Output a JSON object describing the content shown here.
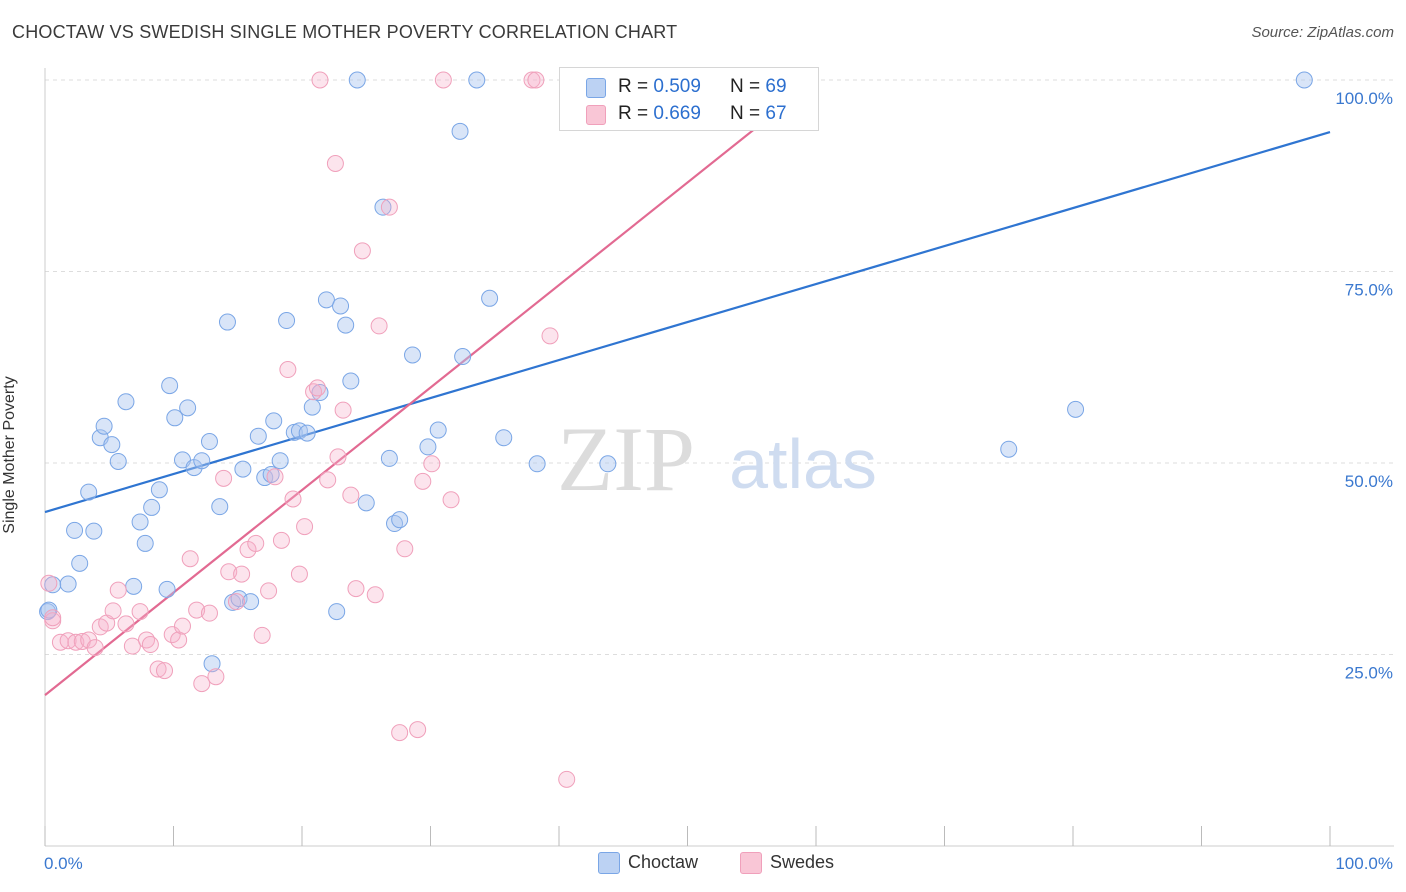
{
  "title": "CHOCTAW VS SWEDISH SINGLE MOTHER POVERTY CORRELATION CHART",
  "source": "Source: ZipAtlas.com",
  "watermark": {
    "zip": "ZIP",
    "atlas": "atlas"
  },
  "legend_top": [
    {
      "r_label": "R =",
      "r_value": "0.509",
      "n_label": "N =",
      "n_value": "69"
    },
    {
      "r_label": "R =",
      "r_value": "0.669",
      "n_label": "N =",
      "n_value": "67"
    }
  ],
  "chart_data": {
    "type": "scatter",
    "title": "CHOCTAW VS SWEDISH SINGLE MOTHER POVERTY CORRELATION CHART",
    "xlabel": "",
    "ylabel": "Single Mother Poverty",
    "xlim": [
      0,
      100
    ],
    "ylim": [
      0,
      100
    ],
    "x_tick_labels": [
      "0.0%",
      "100.0%"
    ],
    "y_tick_labels": [
      "25.0%",
      "50.0%",
      "75.0%",
      "100.0%"
    ],
    "y_ticks": [
      25,
      50,
      75,
      100
    ],
    "grid": "horizontal dashed",
    "legend_position": "bottom-center",
    "colors": {
      "choctaw": "#7aa6e6",
      "choctaw_line": "#2f75d1",
      "swedes": "#f0a0bb",
      "swedes_line": "#e26a92",
      "axis_text": "#3a78cf"
    },
    "series": [
      {
        "name": "Choctaw",
        "trend": {
          "x": [
            0,
            100
          ],
          "y": [
            43.6,
            93.2
          ]
        },
        "points": [
          [
            0.2,
            30.6
          ],
          [
            0.6,
            34.1
          ],
          [
            1.8,
            34.2
          ],
          [
            2.3,
            41.2
          ],
          [
            2.7,
            36.9
          ],
          [
            3.4,
            46.2
          ],
          [
            3.8,
            41.1
          ],
          [
            4.3,
            53.3
          ],
          [
            4.6,
            54.8
          ],
          [
            5.2,
            52.4
          ],
          [
            5.7,
            50.2
          ],
          [
            6.3,
            58.0
          ],
          [
            6.9,
            33.9
          ],
          [
            7.4,
            42.3
          ],
          [
            7.8,
            39.5
          ],
          [
            8.3,
            44.2
          ],
          [
            8.9,
            46.5
          ],
          [
            9.5,
            33.5
          ],
          [
            9.7,
            60.1
          ],
          [
            10.1,
            55.9
          ],
          [
            10.7,
            50.4
          ],
          [
            11.1,
            57.2
          ],
          [
            11.6,
            49.4
          ],
          [
            12.2,
            50.3
          ],
          [
            12.8,
            52.8
          ],
          [
            13.0,
            23.8
          ],
          [
            13.6,
            44.3
          ],
          [
            14.2,
            68.4
          ],
          [
            14.6,
            31.8
          ],
          [
            15.1,
            32.3
          ],
          [
            15.4,
            49.2
          ],
          [
            16.0,
            31.9
          ],
          [
            16.6,
            53.5
          ],
          [
            17.1,
            48.1
          ],
          [
            17.6,
            48.5
          ],
          [
            17.8,
            55.5
          ],
          [
            18.3,
            50.3
          ],
          [
            18.8,
            68.6
          ],
          [
            19.4,
            54.0
          ],
          [
            19.8,
            54.2
          ],
          [
            20.4,
            53.9
          ],
          [
            20.8,
            57.3
          ],
          [
            21.4,
            59.2
          ],
          [
            21.9,
            71.3
          ],
          [
            23.0,
            70.5
          ],
          [
            23.4,
            68.0
          ],
          [
            23.8,
            60.7
          ],
          [
            22.7,
            30.6
          ],
          [
            24.3,
            100
          ],
          [
            25.0,
            44.8
          ],
          [
            26.3,
            83.4
          ],
          [
            26.8,
            50.6
          ],
          [
            27.2,
            42.1
          ],
          [
            27.6,
            42.6
          ],
          [
            28.6,
            64.1
          ],
          [
            29.8,
            52.1
          ],
          [
            30.6,
            54.3
          ],
          [
            32.3,
            93.3
          ],
          [
            32.5,
            63.9
          ],
          [
            33.6,
            100
          ],
          [
            34.6,
            71.5
          ],
          [
            35.7,
            53.3
          ],
          [
            38.3,
            49.9
          ],
          [
            43.8,
            49.9
          ],
          [
            46.2,
            100
          ],
          [
            75.0,
            51.8
          ],
          [
            80.2,
            57.0
          ],
          [
            98.0,
            100
          ],
          [
            0.3,
            30.8
          ]
        ]
      },
      {
        "name": "Swedes",
        "trend": {
          "x": [
            0,
            60
          ],
          "y": [
            19.7,
            100
          ]
        },
        "points": [
          [
            0.3,
            34.3
          ],
          [
            0.6,
            29.4
          ],
          [
            1.2,
            26.6
          ],
          [
            1.8,
            26.8
          ],
          [
            2.4,
            26.6
          ],
          [
            2.9,
            26.7
          ],
          [
            3.4,
            26.9
          ],
          [
            3.9,
            25.9
          ],
          [
            4.3,
            28.6
          ],
          [
            4.8,
            29.1
          ],
          [
            5.3,
            30.7
          ],
          [
            5.7,
            33.4
          ],
          [
            6.3,
            29.0
          ],
          [
            6.8,
            26.1
          ],
          [
            7.4,
            30.6
          ],
          [
            7.9,
            26.9
          ],
          [
            8.2,
            26.3
          ],
          [
            8.8,
            23.1
          ],
          [
            9.3,
            22.9
          ],
          [
            9.9,
            27.6
          ],
          [
            10.4,
            26.9
          ],
          [
            10.7,
            28.7
          ],
          [
            11.3,
            37.5
          ],
          [
            11.8,
            30.8
          ],
          [
            12.2,
            21.2
          ],
          [
            12.8,
            30.4
          ],
          [
            13.3,
            22.1
          ],
          [
            13.9,
            48.0
          ],
          [
            14.3,
            35.8
          ],
          [
            14.9,
            31.9
          ],
          [
            15.3,
            35.5
          ],
          [
            15.8,
            38.7
          ],
          [
            16.4,
            39.5
          ],
          [
            16.9,
            27.5
          ],
          [
            17.4,
            33.3
          ],
          [
            17.9,
            48.2
          ],
          [
            18.4,
            39.9
          ],
          [
            18.9,
            62.2
          ],
          [
            19.3,
            45.3
          ],
          [
            19.8,
            35.5
          ],
          [
            20.2,
            41.7
          ],
          [
            20.9,
            59.3
          ],
          [
            21.2,
            59.8
          ],
          [
            22.0,
            47.8
          ],
          [
            22.6,
            89.1
          ],
          [
            22.8,
            50.8
          ],
          [
            23.2,
            56.9
          ],
          [
            23.8,
            45.8
          ],
          [
            24.2,
            33.6
          ],
          [
            24.7,
            77.7
          ],
          [
            25.7,
            32.8
          ],
          [
            26.0,
            67.9
          ],
          [
            26.8,
            83.4
          ],
          [
            27.6,
            14.8
          ],
          [
            28.0,
            38.8
          ],
          [
            29.0,
            15.2
          ],
          [
            29.4,
            47.6
          ],
          [
            30.1,
            49.9
          ],
          [
            31.6,
            45.2
          ],
          [
            21.4,
            100
          ],
          [
            31.0,
            100
          ],
          [
            37.9,
            100
          ],
          [
            38.2,
            100
          ],
          [
            39.3,
            66.6
          ],
          [
            40.6,
            8.7
          ],
          [
            45.3,
            100
          ],
          [
            0.6,
            29.8
          ]
        ]
      }
    ]
  }
}
